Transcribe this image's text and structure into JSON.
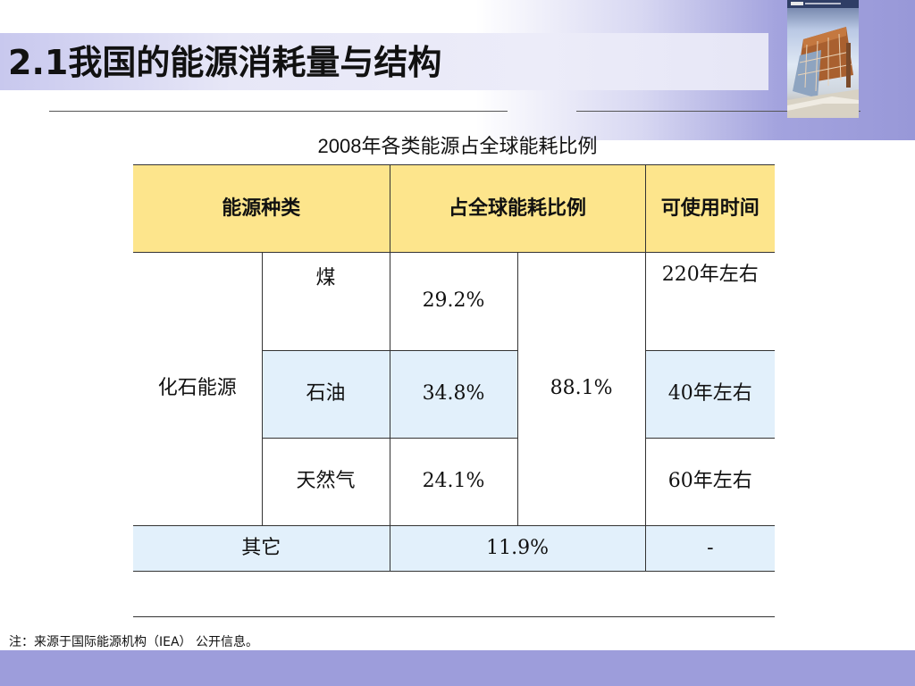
{
  "slide": {
    "title": "2.1我国的能源消耗量与结构",
    "subtitle": "2008年各类能源占全球能耗比例",
    "note": "注：来源于国际能源机构（IEA） 公开信息。"
  },
  "table": {
    "headers": {
      "type": "能源种类",
      "share": "占全球能耗比例",
      "lifetime": "可使用时间"
    },
    "fossil_label": "化石能源",
    "fossil_total": "88.1%",
    "rows": [
      {
        "name": "煤",
        "share": "29.2%",
        "lifetime": "220年左右"
      },
      {
        "name": "石油",
        "share": "34.8%",
        "lifetime": "40年左右"
      },
      {
        "name": "天然气",
        "share": "24.1%",
        "lifetime": "60年左右"
      }
    ],
    "other": {
      "name": "其它",
      "share": "11.9%",
      "lifetime": "-"
    }
  },
  "colors": {
    "header_fill": "#fde58c",
    "highlight_fill": "#e2f0fb",
    "theme_band": "#9d9ddb"
  }
}
